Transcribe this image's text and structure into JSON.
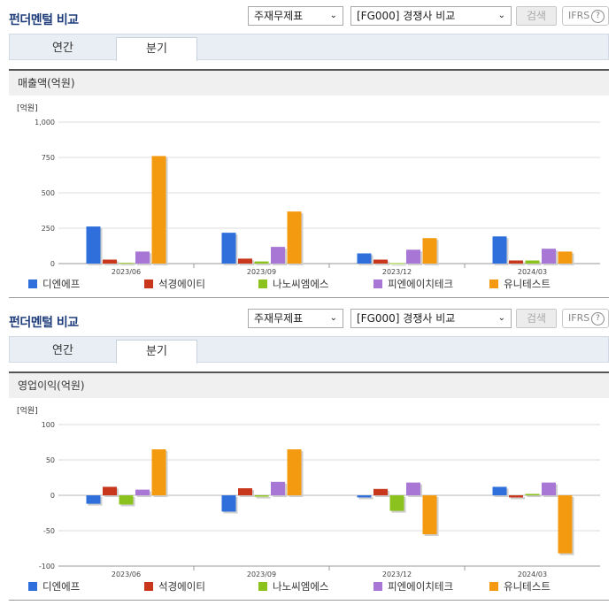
{
  "sections": [
    {
      "title": "펀더멘털 비교",
      "select1": "주재무제표",
      "select2": "[FG000] 경쟁사 비교",
      "search_label": "검색",
      "ifrs_label": "IFRS",
      "help": "?",
      "tabs": [
        "연간",
        "분기"
      ],
      "active_tab": "분기",
      "metric_label": "매출액(억원)",
      "unit": "[억원]"
    },
    {
      "title": "펀더멘털 비교",
      "select1": "주재무제표",
      "select2": "[FG000] 경쟁사 비교",
      "search_label": "검색",
      "ifrs_label": "IFRS",
      "help": "?",
      "tabs": [
        "연간",
        "분기"
      ],
      "active_tab": "분기",
      "metric_label": "영업이익(억원)",
      "unit": "[억원]"
    }
  ],
  "colors": {
    "series": [
      "#2e6fdc",
      "#c8361b",
      "#8cc21d",
      "#a877d6",
      "#f49a11"
    ],
    "grid": "#dddddd",
    "axis": "#999999",
    "tabbar": "#e9eef4",
    "title": "#1f3d7a"
  },
  "chart_data": [
    {
      "type": "bar",
      "categories": [
        "2023/06",
        "2023/09",
        "2023/12",
        "2024/03"
      ],
      "series": [
        {
          "name": "디엔에프",
          "values": [
            262,
            218,
            72,
            192
          ]
        },
        {
          "name": "석경에이티",
          "values": [
            28,
            35,
            28,
            22
          ]
        },
        {
          "name": "나노씨엠에스",
          "values": [
            5,
            15,
            3,
            22
          ]
        },
        {
          "name": "피엔에이치테크",
          "values": [
            85,
            118,
            98,
            105
          ]
        },
        {
          "name": "유니테스트",
          "values": [
            760,
            368,
            180,
            85
          ]
        }
      ],
      "yticks": [
        "1,000",
        "750",
        "500",
        "250",
        "0"
      ],
      "ylim": [
        0,
        1000
      ],
      "grid": true,
      "legend": "bottom"
    },
    {
      "type": "bar",
      "categories": [
        "2023/06",
        "2023/09",
        "2023/12",
        "2024/03"
      ],
      "series": [
        {
          "name": "디엔에프",
          "values": [
            -12,
            -23,
            -3,
            12
          ]
        },
        {
          "name": "석경에이티",
          "values": [
            12,
            10,
            9,
            -3
          ]
        },
        {
          "name": "나노씨엠에스",
          "values": [
            -13,
            -2,
            -22,
            2
          ]
        },
        {
          "name": "피엔에이치테크",
          "values": [
            8,
            19,
            18,
            18
          ]
        },
        {
          "name": "유니테스트",
          "values": [
            65,
            65,
            -55,
            -82
          ]
        }
      ],
      "yticks": [
        "100",
        "50",
        "0",
        "-50",
        "-100"
      ],
      "ylim": [
        -100,
        100
      ],
      "grid": true,
      "legend": "bottom"
    }
  ]
}
